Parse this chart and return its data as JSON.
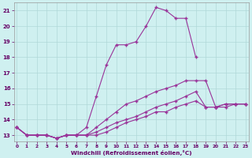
{
  "background_color": "#cff0f0",
  "grid_color": "#b0d8d8",
  "line_color": "#993399",
  "marker": "+",
  "markersize": 3,
  "linewidth": 0.8,
  "series": [
    {
      "x": [
        0,
        1,
        2,
        3,
        4,
        5,
        6,
        7,
        8,
        9,
        10,
        11,
        12,
        13,
        14,
        15,
        16,
        17,
        18
      ],
      "y": [
        13.5,
        13.0,
        13.0,
        13.0,
        12.8,
        13.0,
        13.0,
        13.5,
        15.5,
        17.5,
        18.8,
        18.8,
        19.0,
        20.0,
        21.2,
        21.0,
        20.5,
        20.5,
        18.0
      ]
    },
    {
      "x": [
        0,
        1,
        2,
        3,
        4,
        5,
        6,
        7,
        8,
        9,
        10,
        11,
        12,
        13,
        14,
        15,
        16,
        17,
        18,
        19,
        20,
        21,
        22,
        23
      ],
      "y": [
        13.5,
        13.0,
        13.0,
        13.0,
        12.8,
        13.0,
        13.0,
        13.0,
        13.5,
        14.0,
        14.5,
        15.0,
        15.2,
        15.5,
        15.8,
        16.0,
        16.2,
        16.5,
        16.5,
        16.5,
        14.8,
        14.8,
        15.0,
        15.0
      ]
    },
    {
      "x": [
        0,
        1,
        2,
        3,
        4,
        5,
        6,
        7,
        8,
        9,
        10,
        11,
        12,
        13,
        14,
        15,
        16,
        17,
        18,
        19,
        20,
        21,
        22,
        23
      ],
      "y": [
        13.5,
        13.0,
        13.0,
        13.0,
        12.8,
        13.0,
        13.0,
        13.0,
        13.2,
        13.5,
        13.8,
        14.0,
        14.2,
        14.5,
        14.8,
        15.0,
        15.2,
        15.5,
        15.8,
        14.8,
        14.8,
        15.0,
        15.0,
        15.0
      ]
    },
    {
      "x": [
        0,
        1,
        2,
        3,
        4,
        5,
        6,
        7,
        8,
        9,
        10,
        11,
        12,
        13,
        14,
        15,
        16,
        17,
        18,
        19,
        20,
        21,
        22,
        23
      ],
      "y": [
        13.5,
        13.0,
        13.0,
        13.0,
        12.8,
        13.0,
        13.0,
        13.0,
        13.0,
        13.2,
        13.5,
        13.8,
        14.0,
        14.2,
        14.5,
        14.5,
        14.8,
        15.0,
        15.2,
        14.8,
        14.8,
        15.0,
        15.0,
        15.0
      ]
    }
  ],
  "xlabel": "Windchill (Refroidissement éolien,°C)",
  "xlim": [
    0,
    23
  ],
  "ylim": [
    12.6,
    21.5
  ],
  "xticks": [
    0,
    1,
    2,
    3,
    4,
    5,
    6,
    7,
    8,
    9,
    10,
    11,
    12,
    13,
    14,
    15,
    16,
    17,
    18,
    19,
    20,
    21,
    22,
    23
  ],
  "yticks": [
    13,
    14,
    15,
    16,
    17,
    18,
    19,
    20,
    21
  ]
}
